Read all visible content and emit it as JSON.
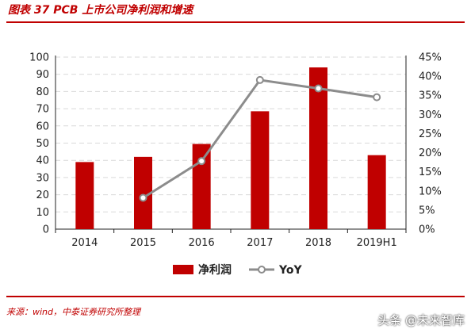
{
  "figure": {
    "title": "图表 37 PCB 上市公司净利润和增速",
    "source": "来源：wind，中泰证券研究所整理",
    "watermark": "头条 @未来智库"
  },
  "colors": {
    "bar": "#c00000",
    "line": "#8c8c8c",
    "marker_fill": "#ffffff",
    "rule": "#c00000",
    "grid": "#d9d9d9"
  },
  "chart_data": {
    "type": "bar",
    "categories": [
      "2014",
      "2015",
      "2016",
      "2017",
      "2018",
      "2019H1"
    ],
    "series": [
      {
        "name": "净利润",
        "type": "bar",
        "axis": "left",
        "values": [
          39,
          42,
          49.5,
          68.5,
          94,
          43
        ]
      },
      {
        "name": "YoY",
        "type": "line",
        "axis": "right",
        "values": [
          null,
          8.2,
          17.8,
          39.0,
          36.8,
          34.5
        ]
      }
    ],
    "y_left": {
      "min": 0,
      "max": 100,
      "step": 10,
      "tick_labels": [
        "0",
        "10",
        "20",
        "30",
        "40",
        "50",
        "60",
        "70",
        "80",
        "90",
        "100"
      ]
    },
    "y_right": {
      "min": 0,
      "max": 45,
      "step": 5,
      "tick_labels": [
        "0%",
        "5%",
        "10%",
        "15%",
        "20%",
        "25%",
        "30%",
        "35%",
        "40%",
        "45%"
      ]
    },
    "grid": true,
    "legend_position": "bottom"
  }
}
